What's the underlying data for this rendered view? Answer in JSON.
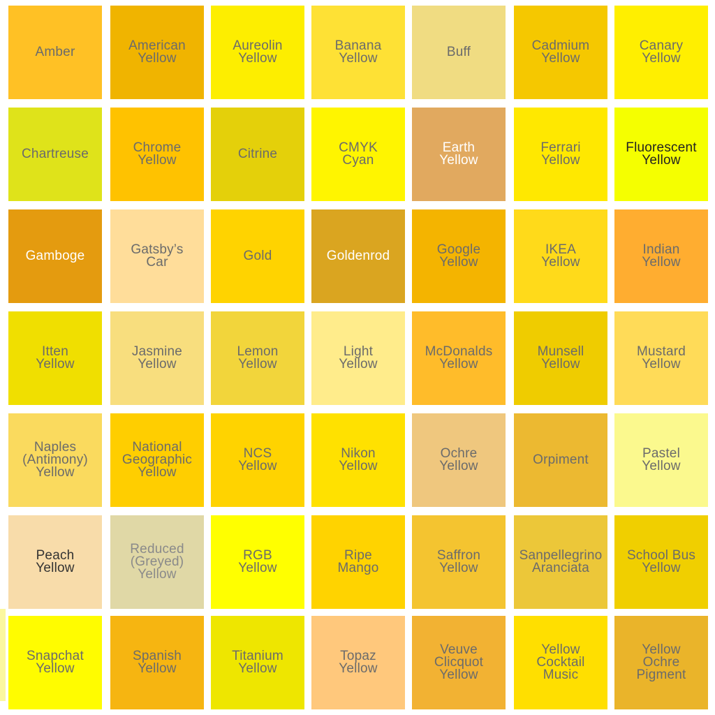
{
  "swatches": [
    {
      "label": "Amber",
      "color": "#ffc125",
      "text_color": "#6b6b6b"
    },
    {
      "label": "American\nYellow",
      "color": "#f0b400",
      "text_color": "#6b6b6b"
    },
    {
      "label": "Aureolin\nYellow",
      "color": "#fdee00",
      "text_color": "#6b6b6b"
    },
    {
      "label": "Banana\nYellow",
      "color": "#fee135",
      "text_color": "#6b6b6b"
    },
    {
      "label": "Buff",
      "color": "#f0dc82",
      "text_color": "#6b6b6b"
    },
    {
      "label": "Cadmium\nYellow",
      "color": "#f5c800",
      "text_color": "#6b6b6b"
    },
    {
      "label": "Canary\nYellow",
      "color": "#ffef00",
      "text_color": "#6b6b6b"
    },
    {
      "label": "Chartreuse",
      "color": "#dfe31a",
      "text_color": "#6b6b6b"
    },
    {
      "label": "Chrome\nYellow",
      "color": "#ffc200",
      "text_color": "#6b6b6b"
    },
    {
      "label": "Citrine",
      "color": "#e4d00a",
      "text_color": "#6b6b6b"
    },
    {
      "label": "CMYK\nCyan",
      "color": "#fff500",
      "text_color": "#6b6b6b"
    },
    {
      "label": "Earth\nYellow",
      "color": "#e1a95f",
      "text_color": "#ffffff"
    },
    {
      "label": "Ferrari\nYellow",
      "color": "#ffe800",
      "text_color": "#6b6b6b"
    },
    {
      "label": "Fluorescent\nYellow",
      "color": "#f5ff00",
      "text_color": "#222222"
    },
    {
      "label": "Gamboge",
      "color": "#e49b0f",
      "text_color": "#ffffff"
    },
    {
      "label": "Gatsby’s\nCar",
      "color": "#ffdd9a",
      "text_color": "#6b6b6b"
    },
    {
      "label": "Gold",
      "color": "#ffd300",
      "text_color": "#6b6b6b"
    },
    {
      "label": "Goldenrod",
      "color": "#daa520",
      "text_color": "#ffffff"
    },
    {
      "label": "Google\nYellow",
      "color": "#f4b400",
      "text_color": "#6b6b6b"
    },
    {
      "label": "IKEA\nYellow",
      "color": "#ffda1a",
      "text_color": "#6b6b6b"
    },
    {
      "label": "Indian\nYellow",
      "color": "#ffad30",
      "text_color": "#6b6b6b"
    },
    {
      "label": "Itten\nYellow",
      "color": "#f0df00",
      "text_color": "#6b6b6b"
    },
    {
      "label": "Jasmine\nYellow",
      "color": "#f8de7e",
      "text_color": "#6b6b6b"
    },
    {
      "label": "Lemon\nYellow",
      "color": "#f2d53b",
      "text_color": "#6b6b6b"
    },
    {
      "label": "Light\nYellow",
      "color": "#ffec8b",
      "text_color": "#6b6b6b"
    },
    {
      "label": "McDonalds\nYellow",
      "color": "#ffbc2a",
      "text_color": "#6b6b6b"
    },
    {
      "label": "Munsell\nYellow",
      "color": "#efcc00",
      "text_color": "#6b6b6b"
    },
    {
      "label": "Mustard\nYellow",
      "color": "#ffdb58",
      "text_color": "#6b6b6b"
    },
    {
      "label": "Naples\n(Antimony)\nYellow",
      "color": "#fada5e",
      "text_color": "#6b6b6b"
    },
    {
      "label": "National\nGeographic\nYellow",
      "color": "#ffce00",
      "text_color": "#6b6b6b"
    },
    {
      "label": "NCS\nYellow",
      "color": "#ffd300",
      "text_color": "#6b6b6b"
    },
    {
      "label": "Nikon\nYellow",
      "color": "#ffe100",
      "text_color": "#6b6b6b"
    },
    {
      "label": "Ochre\nYellow",
      "color": "#efc77e",
      "text_color": "#6b6b6b"
    },
    {
      "label": "Orpiment",
      "color": "#ecb931",
      "text_color": "#6b6b6b"
    },
    {
      "label": "Pastel\nYellow",
      "color": "#fbf98e",
      "text_color": "#6b6b6b"
    },
    {
      "label": "Peach\nYellow",
      "color": "#f8dcaa",
      "text_color": "#333333"
    },
    {
      "label": "Reduced\n(Greyed)\nYellow",
      "color": "#e0d8a6",
      "text_color": "#8a8a8a"
    },
    {
      "label": "RGB\nYellow",
      "color": "#ffff00",
      "text_color": "#6b6b6b"
    },
    {
      "label": "Ripe\nMango",
      "color": "#ffd300",
      "text_color": "#6b6b6b"
    },
    {
      "label": "Saffron\nYellow",
      "color": "#f4c430",
      "text_color": "#6b6b6b"
    },
    {
      "label": "Sanpellegrino\nAranciata",
      "color": "#ecc739",
      "text_color": "#6b6b6b"
    },
    {
      "label": "School Bus\nYellow",
      "color": "#f0cf00",
      "text_color": "#6b6b6b"
    },
    {
      "label": "Snapchat\nYellow",
      "color": "#fffc00",
      "text_color": "#6b6b6b"
    },
    {
      "label": "Spanish\nYellow",
      "color": "#f6b511",
      "text_color": "#6b6b6b"
    },
    {
      "label": "Titanium\nYellow",
      "color": "#eee600",
      "text_color": "#6b6b6b"
    },
    {
      "label": "Topaz\nYellow",
      "color": "#ffc87c",
      "text_color": "#6b6b6b"
    },
    {
      "label": "Veuve\nClicquot\nYellow",
      "color": "#f2b233",
      "text_color": "#6b6b6b"
    },
    {
      "label": "Yellow\nCocktail\nMusic",
      "color": "#ffdf00",
      "text_color": "#6b6b6b"
    },
    {
      "label": "Yellow\nOchre\nPigment",
      "color": "#eab42a",
      "text_color": "#6b6b6b"
    }
  ]
}
